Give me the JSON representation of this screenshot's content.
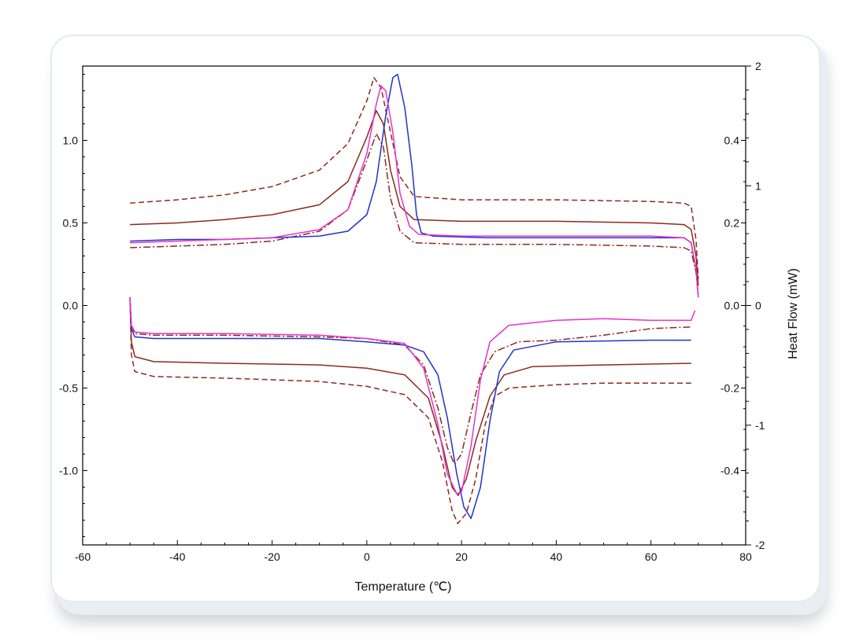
{
  "chart_data": {
    "type": "line",
    "title": "",
    "xlabel": "Temperature (℃)",
    "ylabel_left": "",
    "ylabel_right": "Heat Flow (mW)",
    "xlim": [
      -60,
      80
    ],
    "ylim_left": [
      -1.45,
      1.45
    ],
    "ylim_right": [
      -2,
      2
    ],
    "grid": false,
    "legend": "none",
    "x_ticks": [
      "-60",
      "-40",
      "-20",
      "0",
      "20",
      "40",
      "60",
      "80"
    ],
    "left_ticks": [
      "1.0",
      "0.5",
      "0.0",
      "-0.5",
      "-1.0"
    ],
    "right_ticks_inner": [
      "0.4",
      "0.2",
      "0.0",
      "-0.2",
      "-0.4"
    ],
    "right_ticks_outer": [
      "2",
      "1",
      "0",
      "-1",
      "-2"
    ],
    "series": [
      {
        "color": "#8b2a1e",
        "dash": "dashed",
        "upper": [
          [
            -50,
            0.62
          ],
          [
            -40,
            0.64
          ],
          [
            -30,
            0.67
          ],
          [
            -20,
            0.72
          ],
          [
            -10,
            0.82
          ],
          [
            -4,
            0.98
          ],
          [
            0,
            1.24
          ],
          [
            1.5,
            1.38
          ],
          [
            3,
            1.32
          ],
          [
            5,
            1.05
          ],
          [
            7,
            0.78
          ],
          [
            10,
            0.66
          ],
          [
            20,
            0.64
          ],
          [
            40,
            0.64
          ],
          [
            60,
            0.63
          ],
          [
            67,
            0.62
          ],
          [
            68.5,
            0.6
          ],
          [
            69.5,
            0.4
          ],
          [
            70,
            0.16
          ]
        ],
        "lower": [
          [
            -50,
            0.03
          ],
          [
            -49.7,
            -0.3
          ],
          [
            -49,
            -0.4
          ],
          [
            -45,
            -0.43
          ],
          [
            -30,
            -0.44
          ],
          [
            -10,
            -0.46
          ],
          [
            0,
            -0.49
          ],
          [
            8,
            -0.54
          ],
          [
            13,
            -0.68
          ],
          [
            16,
            -0.95
          ],
          [
            18,
            -1.24
          ],
          [
            19.2,
            -1.32
          ],
          [
            21,
            -1.26
          ],
          [
            23,
            -1.05
          ],
          [
            25,
            -0.72
          ],
          [
            27,
            -0.55
          ],
          [
            30,
            -0.5
          ],
          [
            40,
            -0.48
          ],
          [
            50,
            -0.47
          ],
          [
            68.5,
            -0.47
          ]
        ]
      },
      {
        "color": "#8b2a1e",
        "dash": "solid",
        "upper": [
          [
            -50,
            0.49
          ],
          [
            -40,
            0.5
          ],
          [
            -30,
            0.52
          ],
          [
            -20,
            0.55
          ],
          [
            -10,
            0.61
          ],
          [
            -4,
            0.75
          ],
          [
            0,
            1.02
          ],
          [
            2,
            1.18
          ],
          [
            3.5,
            1.1
          ],
          [
            5,
            0.82
          ],
          [
            7,
            0.6
          ],
          [
            10,
            0.52
          ],
          [
            20,
            0.51
          ],
          [
            40,
            0.51
          ],
          [
            60,
            0.5
          ],
          [
            67,
            0.49
          ],
          [
            68.5,
            0.46
          ],
          [
            69.5,
            0.3
          ],
          [
            70,
            0.12
          ]
        ],
        "lower": [
          [
            -50,
            0.05
          ],
          [
            -49.7,
            -0.22
          ],
          [
            -49,
            -0.31
          ],
          [
            -45,
            -0.34
          ],
          [
            -30,
            -0.35
          ],
          [
            -10,
            -0.36
          ],
          [
            0,
            -0.38
          ],
          [
            8,
            -0.42
          ],
          [
            13,
            -0.56
          ],
          [
            16,
            -0.85
          ],
          [
            18,
            -1.1
          ],
          [
            19.3,
            -1.15
          ],
          [
            21,
            -1.05
          ],
          [
            23,
            -0.82
          ],
          [
            26,
            -0.55
          ],
          [
            29,
            -0.42
          ],
          [
            35,
            -0.37
          ],
          [
            50,
            -0.36
          ],
          [
            68.5,
            -0.35
          ]
        ]
      },
      {
        "color": "#8b2a1e",
        "dash": "dashdot",
        "upper": [
          [
            -50,
            0.35
          ],
          [
            -40,
            0.36
          ],
          [
            -30,
            0.37
          ],
          [
            -20,
            0.39
          ],
          [
            -10,
            0.45
          ],
          [
            -4,
            0.58
          ],
          [
            0,
            0.88
          ],
          [
            2,
            1.04
          ],
          [
            3.5,
            0.96
          ],
          [
            5,
            0.65
          ],
          [
            7,
            0.45
          ],
          [
            10,
            0.38
          ],
          [
            20,
            0.37
          ],
          [
            40,
            0.37
          ],
          [
            60,
            0.36
          ],
          [
            67,
            0.35
          ],
          [
            68.5,
            0.33
          ],
          [
            69.5,
            0.2
          ],
          [
            70,
            0.05
          ]
        ],
        "lower": [
          [
            -50,
            0.04
          ],
          [
            -49.7,
            -0.12
          ],
          [
            -49,
            -0.17
          ],
          [
            -45,
            -0.18
          ],
          [
            -30,
            -0.18
          ],
          [
            -10,
            -0.19
          ],
          [
            0,
            -0.2
          ],
          [
            8,
            -0.24
          ],
          [
            12,
            -0.36
          ],
          [
            15,
            -0.62
          ],
          [
            17,
            -0.86
          ],
          [
            18.5,
            -0.96
          ],
          [
            20,
            -0.9
          ],
          [
            22,
            -0.65
          ],
          [
            24,
            -0.42
          ],
          [
            27,
            -0.28
          ],
          [
            32,
            -0.22
          ],
          [
            40,
            -0.21
          ],
          [
            50,
            -0.18
          ],
          [
            60,
            -0.14
          ],
          [
            68.5,
            -0.13
          ]
        ]
      },
      {
        "color": "#2233cc",
        "dash": "solid",
        "upper": [
          [
            -50,
            0.39
          ],
          [
            -40,
            0.4
          ],
          [
            -30,
            0.4
          ],
          [
            -20,
            0.41
          ],
          [
            -10,
            0.42
          ],
          [
            -4,
            0.45
          ],
          [
            0,
            0.55
          ],
          [
            2,
            0.75
          ],
          [
            4,
            1.15
          ],
          [
            5.5,
            1.38
          ],
          [
            6.5,
            1.4
          ],
          [
            8,
            1.2
          ],
          [
            9.5,
            0.85
          ],
          [
            10.5,
            0.55
          ],
          [
            11.5,
            0.44
          ],
          [
            14,
            0.42
          ],
          [
            25,
            0.41
          ],
          [
            40,
            0.41
          ],
          [
            60,
            0.41
          ],
          [
            67,
            0.41
          ],
          [
            68.5,
            0.38
          ],
          [
            69.5,
            0.22
          ],
          [
            70,
            0.05
          ]
        ],
        "lower": [
          [
            -50,
            0.03
          ],
          [
            -49.7,
            -0.14
          ],
          [
            -49,
            -0.19
          ],
          [
            -45,
            -0.2
          ],
          [
            -30,
            -0.2
          ],
          [
            -10,
            -0.2
          ],
          [
            0,
            -0.22
          ],
          [
            8,
            -0.24
          ],
          [
            12,
            -0.28
          ],
          [
            15,
            -0.42
          ],
          [
            17,
            -0.68
          ],
          [
            19,
            -1.02
          ],
          [
            20.5,
            -1.22
          ],
          [
            22,
            -1.29
          ],
          [
            24,
            -1.1
          ],
          [
            26,
            -0.7
          ],
          [
            28,
            -0.4
          ],
          [
            31,
            -0.27
          ],
          [
            40,
            -0.22
          ],
          [
            60,
            -0.21
          ],
          [
            68.5,
            -0.21
          ]
        ]
      },
      {
        "color": "#e832c8",
        "dash": "solid",
        "upper": [
          [
            -50,
            0.38
          ],
          [
            -40,
            0.39
          ],
          [
            -30,
            0.4
          ],
          [
            -20,
            0.41
          ],
          [
            -10,
            0.46
          ],
          [
            -4,
            0.58
          ],
          [
            0,
            0.92
          ],
          [
            2,
            1.22
          ],
          [
            3,
            1.33
          ],
          [
            4,
            1.3
          ],
          [
            5.5,
            1.05
          ],
          [
            7,
            0.68
          ],
          [
            9,
            0.48
          ],
          [
            11,
            0.43
          ],
          [
            20,
            0.42
          ],
          [
            40,
            0.42
          ],
          [
            60,
            0.42
          ],
          [
            67,
            0.41
          ],
          [
            68.5,
            0.38
          ],
          [
            69.5,
            0.22
          ],
          [
            70,
            0.05
          ]
        ],
        "lower": [
          [
            -50,
            0.04
          ],
          [
            -49.7,
            -0.12
          ],
          [
            -49,
            -0.16
          ],
          [
            -45,
            -0.17
          ],
          [
            -30,
            -0.17
          ],
          [
            -10,
            -0.18
          ],
          [
            0,
            -0.2
          ],
          [
            8,
            -0.23
          ],
          [
            12,
            -0.38
          ],
          [
            15,
            -0.72
          ],
          [
            17,
            -1.02
          ],
          [
            19,
            -1.14
          ],
          [
            20,
            -1.13
          ],
          [
            22,
            -0.85
          ],
          [
            24,
            -0.45
          ],
          [
            26,
            -0.22
          ],
          [
            30,
            -0.12
          ],
          [
            40,
            -0.09
          ],
          [
            50,
            -0.08
          ],
          [
            60,
            -0.09
          ],
          [
            68.5,
            -0.09
          ],
          [
            69.3,
            -0.03
          ]
        ]
      }
    ]
  }
}
